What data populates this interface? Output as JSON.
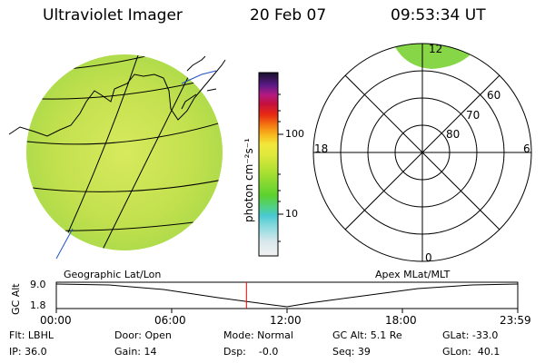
{
  "header": {
    "instrument": "Ultraviolet Imager",
    "date": "20 Feb 07",
    "time": "09:53:34 UT"
  },
  "colorbar": {
    "unit_label": "photon cm⁻²s⁻¹",
    "ticks": [
      "100",
      "10"
    ]
  },
  "polar_plot": {
    "mlt_labels": [
      "12",
      "18",
      "6",
      "0"
    ],
    "lat_labels": [
      "60",
      "70",
      "80"
    ]
  },
  "orbit": {
    "left_caption": "Geographic Lat/Lon",
    "right_caption": "Apex MLat/MLT",
    "axis_title": "GC Alt",
    "ymax": "9.0",
    "ymin": "1.8",
    "time_ticks": [
      "00:00",
      "06:00",
      "12:00",
      "18:00",
      "23:59"
    ],
    "current_marker_hours": 9.89
  },
  "status": {
    "flt": "Flt: LBHL",
    "ip": "IP: 36.0",
    "door": "Door: Open",
    "gain": "Gain: 14",
    "mode": "Mode: Normal",
    "dsp": "Dsp:    -0.0",
    "gc_alt": "GC Alt: 5.1 Re",
    "seq": "Seq: 39",
    "glat": "GLat: -33.0",
    "glon": "GLon:  40.1"
  },
  "colors": {
    "marker": "#ff0000",
    "image_fill": "#b6dd48",
    "coast": "#2050c8"
  }
}
